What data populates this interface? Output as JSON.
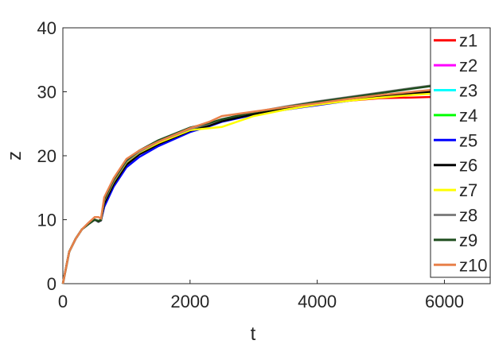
{
  "chart_data": {
    "type": "line",
    "x_label": "t",
    "y_label": "z",
    "x": [
      0,
      100,
      200,
      300,
      400,
      500,
      560,
      600,
      650,
      800,
      1000,
      1200,
      1500,
      2000,
      2300,
      2500,
      3000,
      3500,
      4000,
      4500,
      5000,
      5500,
      5800
    ],
    "series": [
      {
        "name": "z1",
        "color": "#ff0000",
        "values": [
          0,
          5,
          7,
          8.5,
          9.3,
          10,
          9.8,
          10,
          13,
          16,
          19,
          20.5,
          22,
          24,
          24.8,
          25.5,
          26.5,
          27.3,
          28,
          28.6,
          29,
          29.1,
          29.2
        ]
      },
      {
        "name": "z2",
        "color": "#ff00ff",
        "values": [
          0,
          5,
          7,
          8.5,
          9.3,
          10,
          9.8,
          10,
          13,
          16,
          19,
          20.5,
          22,
          24,
          24.8,
          25.5,
          26.5,
          27.3,
          28,
          28.7,
          29.4,
          29.9,
          30.2
        ]
      },
      {
        "name": "z3",
        "color": "#00ffff",
        "values": [
          0,
          5,
          7,
          8.5,
          9.3,
          10,
          9.8,
          10,
          13,
          16,
          19,
          20.5,
          22,
          24,
          24.8,
          25.5,
          26.5,
          27.3,
          28,
          28.7,
          29.3,
          29.8,
          30.1
        ]
      },
      {
        "name": "z4",
        "color": "#00ff00",
        "values": [
          0,
          5,
          7,
          8.5,
          9.3,
          10,
          9.8,
          10,
          13,
          16.2,
          19.2,
          20.7,
          22.2,
          24.2,
          25,
          25.6,
          26.6,
          27.4,
          28.1,
          28.8,
          29.4,
          29.9,
          30.2
        ]
      },
      {
        "name": "z5",
        "color": "#0000ff",
        "values": [
          0,
          5,
          7,
          8.5,
          9.3,
          10,
          9.7,
          9.9,
          12,
          15.2,
          18.2,
          19.8,
          21.5,
          23.7,
          24.6,
          25.3,
          26.4,
          27.2,
          27.9,
          28.6,
          29.2,
          29.7,
          29.9
        ]
      },
      {
        "name": "z6",
        "color": "#000000",
        "values": [
          0,
          5,
          7,
          8.5,
          9.3,
          10,
          9.7,
          9.9,
          12.5,
          15.6,
          18.6,
          20.2,
          21.8,
          23.9,
          24.7,
          25.4,
          26.5,
          27.3,
          28,
          28.7,
          29.3,
          29.8,
          30
        ]
      },
      {
        "name": "z7",
        "color": "#ffff00",
        "values": [
          0,
          5,
          7,
          8.5,
          9.3,
          10,
          9.8,
          10,
          13,
          16,
          19,
          20.5,
          22,
          24,
          24.3,
          24.5,
          26.2,
          27.2,
          28,
          28.6,
          29.1,
          29.5,
          29.7
        ]
      },
      {
        "name": "z8",
        "color": "#808080",
        "values": [
          0,
          5,
          7,
          8.5,
          9.3,
          10,
          9.8,
          10,
          13,
          16.1,
          19.1,
          20.6,
          22.2,
          24.2,
          25,
          25.7,
          26.8,
          27.7,
          28.5,
          29.2,
          29.9,
          30.6,
          31
        ]
      },
      {
        "name": "z9",
        "color": "#1e4d1e",
        "values": [
          0,
          5,
          7,
          8.5,
          9.3,
          10,
          9.8,
          10,
          13.2,
          16.3,
          19.3,
          20.8,
          22.4,
          24.4,
          25.1,
          25.7,
          26.8,
          27.6,
          28.4,
          29.1,
          29.8,
          30.5,
          30.9
        ]
      },
      {
        "name": "z10",
        "color": "#e8804a",
        "values": [
          0,
          5,
          7,
          8.5,
          9.5,
          10.4,
          10.4,
          10.2,
          13.5,
          16.5,
          19.5,
          20.8,
          22.2,
          24.3,
          25.3,
          26.2,
          26.9,
          27.6,
          28.2,
          28.9,
          29.5,
          30,
          30.3
        ]
      }
    ],
    "xlim": [
      0,
      6720
    ],
    "ylim": [
      0,
      40
    ],
    "xticks": [
      0,
      2000,
      4000,
      6000
    ],
    "yticks": [
      0,
      10,
      20,
      30,
      40
    ],
    "legend": "upper right"
  }
}
